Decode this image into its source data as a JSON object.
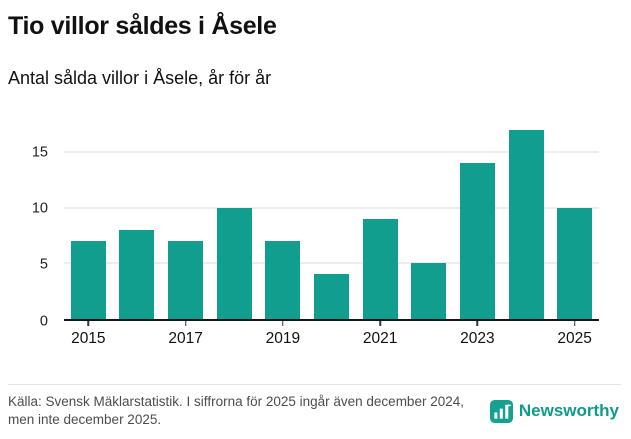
{
  "chart_data": {
    "type": "bar",
    "title": "Tio villor såldes i Åsele",
    "subtitle": "Antal sålda villor i Åsele, år för år",
    "categories": [
      2015,
      2016,
      2017,
      2018,
      2019,
      2020,
      2021,
      2022,
      2023,
      2024,
      2025
    ],
    "values": [
      7,
      8,
      7,
      10,
      7,
      4,
      9,
      5,
      14,
      17,
      10
    ],
    "x_tick_labels": [
      "2015",
      "2017",
      "2019",
      "2021",
      "2023",
      "2025"
    ],
    "y_ticks": [
      0,
      5,
      10,
      15
    ],
    "ylim": [
      0,
      17.6
    ],
    "bar_color": "#119e8f",
    "grid": true,
    "legend": false
  },
  "footer": {
    "source": "Källa: Svensk Mäklarstatistik. I siffrorna för 2025 ingår även december 2024, men inte december 2025.",
    "brand": "Newsworthy",
    "brand_color": "#0f9a8c"
  }
}
